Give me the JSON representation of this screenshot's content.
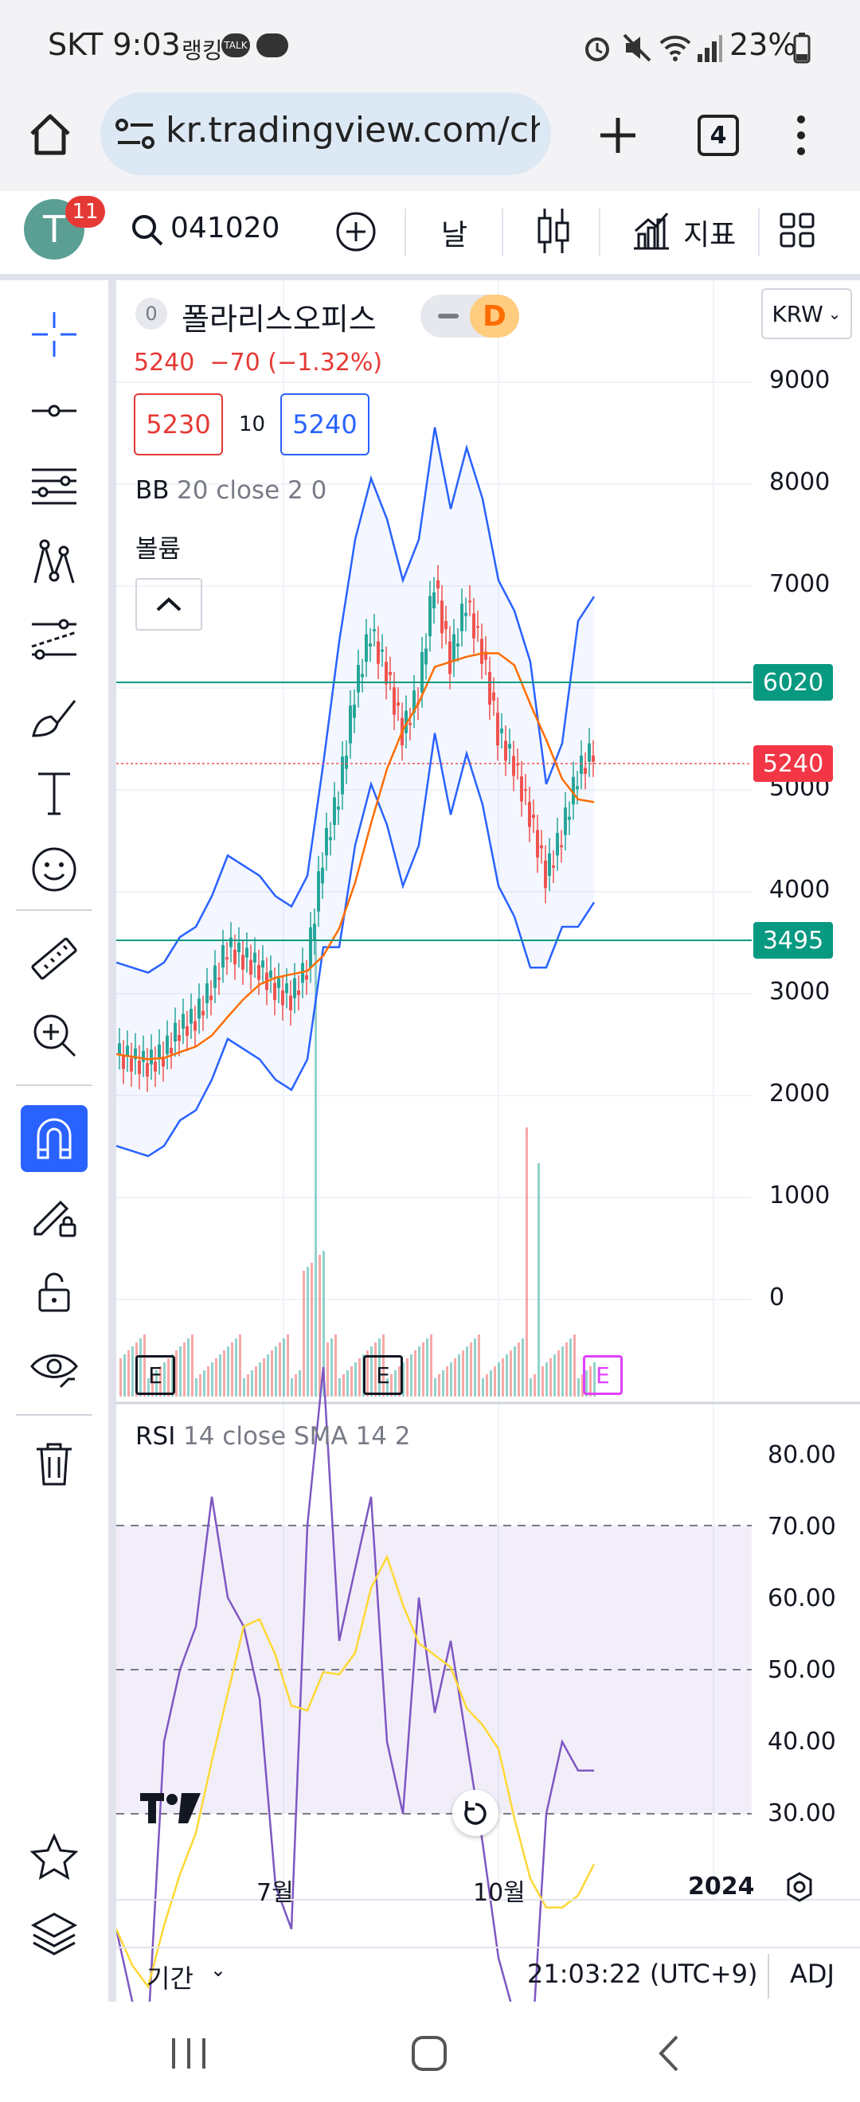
{
  "status": {
    "carrier_time": "SKT 9:03",
    "app_text": "랭킹",
    "talk_badge": "TALK",
    "battery": "23%"
  },
  "browser": {
    "url": "kr.tradingview.com/cha",
    "tab_count": "4"
  },
  "toolbar": {
    "avatar_letter": "T",
    "notification_count": "11",
    "symbol": "041020",
    "interval": "날",
    "indicators_label": "지표"
  },
  "legend": {
    "symbol_badge": "0",
    "symbol_name": "폴라리스오피스",
    "timeframe_badge": "D",
    "price_change": "5240  −70 (−1.32%)",
    "bid": "5230",
    "spread": "10",
    "ask": "5240",
    "bb_label": "BB",
    "bb_params": "20 close 2 0",
    "volume_label": "볼륨"
  },
  "currency": "KRW",
  "price_axis": [
    "9000",
    "8000",
    "7000",
    "5000",
    "4000",
    "3000",
    "2000",
    "1000",
    "0"
  ],
  "price_tags": {
    "upper_line": "6020",
    "last_price": "5240",
    "lower_line": "3495"
  },
  "earnings_markers": [
    "E",
    "E",
    "E"
  ],
  "rsi": {
    "label": "RSI",
    "params": "14 close SMA 14 2",
    "axis": [
      "80.00",
      "70.00",
      "60.00",
      "50.00",
      "40.00",
      "30.00"
    ]
  },
  "time_axis": [
    "7월",
    "10월",
    "2024"
  ],
  "bottom": {
    "range_label": "기간",
    "clock": "21:03:22 (UTC+9)",
    "adj": "ADJ"
  },
  "colors": {
    "up": "#26a69a",
    "down": "#ef5350",
    "bb_band": "#2962ff",
    "bb_basis": "#ff6d00",
    "rsi_line": "#7e57c2",
    "rsi_sma": "#fdd835",
    "accent": "#2962ff",
    "horizontal_line": "#089981"
  }
}
